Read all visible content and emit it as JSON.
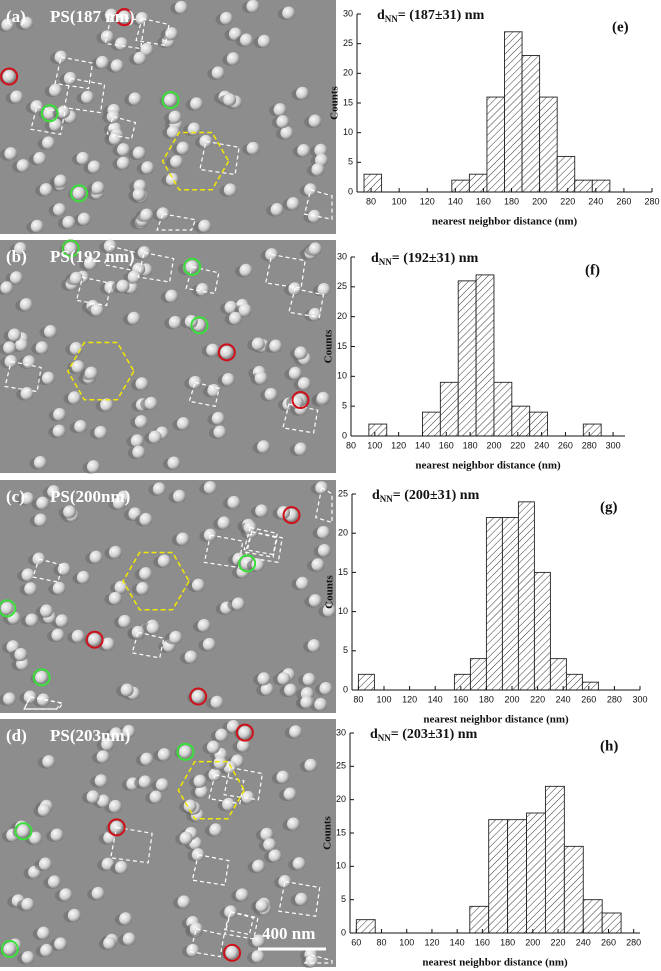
{
  "images": [
    {
      "label": "(a)",
      "caption": "PS(187 nm)"
    },
    {
      "label": "(b)",
      "caption": "PS(192 nm)"
    },
    {
      "label": "(c)",
      "caption": "PS(200nm)"
    },
    {
      "label": "(d)",
      "caption": "PS(203nm)"
    }
  ],
  "scale_bar": "400 nm",
  "chart_data": [
    {
      "type": "histogram",
      "panel": "(e)",
      "title_symbol": "d",
      "title_subscript": "NN",
      "title": "= (187±31) nm",
      "xlabel": "nearest neighbor distance (nm)",
      "ylabel": "Counts",
      "bins": [
        75,
        87.5,
        100,
        112.5,
        125,
        137.5,
        150,
        162.5,
        175,
        187.5,
        200,
        212.5,
        225,
        237.5,
        250
      ],
      "values": [
        3,
        0,
        0,
        0,
        0,
        2,
        3,
        16,
        27,
        23,
        16,
        6,
        2,
        2
      ],
      "xlim": [
        70,
        280
      ],
      "xticks": [
        80,
        100,
        120,
        140,
        160,
        180,
        200,
        220,
        240,
        260,
        280
      ],
      "ylim": [
        0,
        30
      ],
      "yticks": [
        0,
        5,
        10,
        15,
        20,
        25,
        30
      ]
    },
    {
      "type": "histogram",
      "panel": "(f)",
      "title_symbol": "d",
      "title_subscript": "NN",
      "title": "= (192±31) nm",
      "xlabel": "nearest neighbor distance (nm)",
      "ylabel": "Counts",
      "bins": [
        95,
        110,
        125,
        140,
        155,
        170,
        185,
        200,
        215,
        230,
        245,
        260,
        275,
        290
      ],
      "values": [
        2,
        0,
        0,
        4,
        9,
        26,
        27,
        9,
        5,
        4,
        0,
        0,
        2
      ],
      "xlim": [
        80,
        310
      ],
      "xticks": [
        80,
        100,
        120,
        140,
        160,
        180,
        200,
        220,
        240,
        260,
        280,
        300
      ],
      "ylim": [
        0,
        30
      ],
      "yticks": [
        0,
        5,
        10,
        15,
        20,
        25,
        30
      ]
    },
    {
      "type": "histogram",
      "panel": "(g)",
      "title_symbol": "d",
      "title_subscript": "NN",
      "title": "= (200±31) nm",
      "xlabel": "nearest neighbor distance (nm)",
      "ylabel": "Counts",
      "bins": [
        80,
        92.5,
        105,
        117.5,
        130,
        142.5,
        155,
        167.5,
        180,
        192.5,
        205,
        217.5,
        230,
        242.5,
        255,
        267.5
      ],
      "values": [
        2,
        0,
        0,
        0,
        0,
        0,
        2,
        4,
        22,
        22,
        24,
        15,
        4,
        2,
        1
      ],
      "xlim": [
        75,
        300
      ],
      "xticks": [
        80,
        100,
        120,
        140,
        160,
        180,
        200,
        220,
        240,
        260,
        280,
        300
      ],
      "ylim": [
        0,
        25
      ],
      "yticks": [
        0,
        5,
        10,
        15,
        20,
        25
      ]
    },
    {
      "type": "histogram",
      "panel": "(h)",
      "title_symbol": "d",
      "title_subscript": "NN",
      "title": "= (203±31) nm",
      "xlabel": "nearest neighbor distance (nm)",
      "ylabel": "Counts",
      "bins": [
        60,
        75,
        90,
        105,
        120,
        135,
        150,
        165,
        180,
        195,
        210,
        225,
        240,
        255,
        270
      ],
      "values": [
        2,
        0,
        0,
        0,
        0,
        0,
        4,
        17,
        17,
        18,
        22,
        13,
        5,
        3
      ],
      "xlim": [
        55,
        285
      ],
      "xticks": [
        60,
        80,
        100,
        120,
        140,
        160,
        180,
        200,
        220,
        240,
        260,
        280
      ],
      "ylim": [
        0,
        30
      ],
      "yticks": [
        0,
        5,
        10,
        15,
        20,
        25,
        30
      ]
    }
  ]
}
